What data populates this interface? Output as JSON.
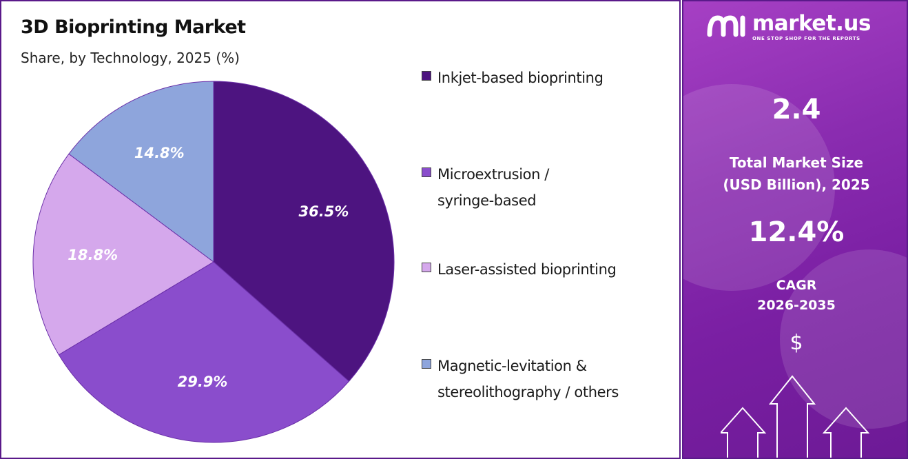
{
  "header": {
    "title": "3D Bioprinting Market",
    "subtitle": "Share, by Technology, 2025 (%)"
  },
  "chart_data": {
    "type": "pie",
    "title": "3D Bioprinting Market",
    "subtitle": "Share, by Technology, 2025 (%)",
    "slices": [
      {
        "label": "Inkjet-based bioprinting",
        "legend_lines": [
          "Inkjet-based bioprinting"
        ],
        "value": 36.5,
        "value_label": "36.5%",
        "color": "#4d1480"
      },
      {
        "label": "Microextrusion / syringe-based",
        "legend_lines": [
          "Microextrusion /",
          "syringe-based"
        ],
        "value": 29.9,
        "value_label": "29.9%",
        "color": "#8a4dcc"
      },
      {
        "label": "Laser-assisted bioprinting",
        "legend_lines": [
          "Laser-assisted bioprinting"
        ],
        "value": 18.8,
        "value_label": "18.8%",
        "color": "#d5a8ec"
      },
      {
        "label": "Magnetic-levitation & stereolithography / others",
        "legend_lines": [
          "Magnetic-levitation &",
          "stereolithography / others"
        ],
        "value": 14.8,
        "value_label": "14.8%",
        "color": "#8ea5dc"
      }
    ],
    "legend_position": "right",
    "start": "12 o'clock",
    "direction": "clockwise"
  },
  "brand": {
    "name": "market.us",
    "tagline": "ONE STOP SHOP FOR THE REPORTS"
  },
  "stats": {
    "market_size_value": "2.4",
    "market_size_label_1": "Total Market Size",
    "market_size_label_2": "(USD Billion), 2025",
    "cagr_value": "12.4%",
    "cagr_label_1": "CAGR",
    "cagr_label_2": "2026-2035",
    "currency_symbol": "$"
  },
  "colors": {
    "panel_border": "#5a1a8a",
    "panel_background": "#8a2cb0",
    "label_text_light": "#ffffff",
    "label_text_dark": "#ffffff"
  }
}
